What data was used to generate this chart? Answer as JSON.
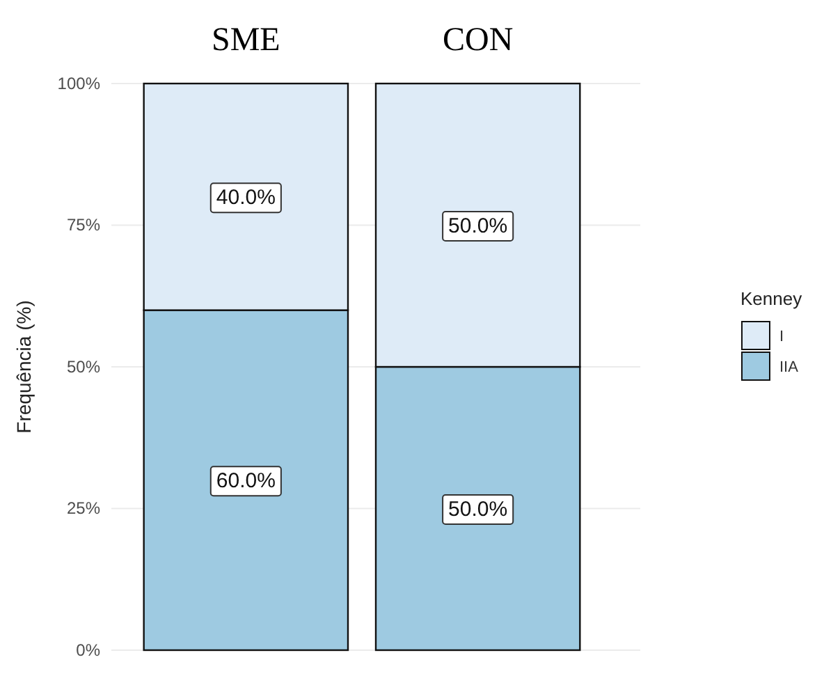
{
  "chart_data": {
    "type": "bar",
    "stacked": true,
    "categories": [
      "SME",
      "CON"
    ],
    "ylabel": "Frequência (%)",
    "legend_title": "Kenney",
    "legend": "right",
    "grid": "y",
    "ylim": [
      0,
      100
    ],
    "yticks": [
      {
        "value": 0,
        "label": "0%"
      },
      {
        "value": 25,
        "label": "25%"
      },
      {
        "value": 50,
        "label": "50%"
      },
      {
        "value": 75,
        "label": "75%"
      },
      {
        "value": 100,
        "label": "100%"
      }
    ],
    "series": [
      {
        "name": "IIA",
        "color": "#9ecae1",
        "values": [
          60,
          50
        ],
        "value_labels": [
          "60.0%",
          "50.0%"
        ]
      },
      {
        "name": "I",
        "color": "#deebf7",
        "values": [
          40,
          50
        ],
        "value_labels": [
          "40.0%",
          "50.0%"
        ]
      }
    ]
  }
}
